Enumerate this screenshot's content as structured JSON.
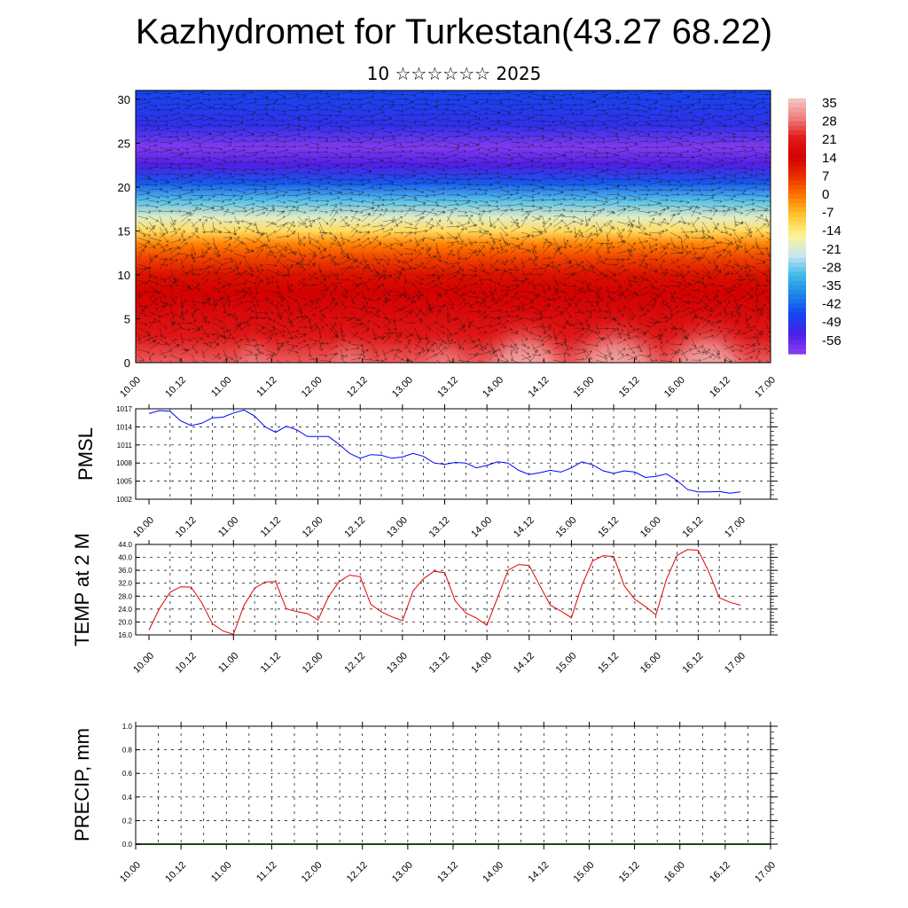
{
  "title": "Kazhydromet for Turkestan(43.27 68.22)",
  "subtitle": "10 ☆☆☆☆☆☆ 2025",
  "colorbar": {
    "labels": [
      "35",
      "28",
      "21",
      "14",
      "7",
      "0",
      "-7",
      "-14",
      "-21",
      "-28",
      "-35",
      "-42",
      "-49",
      "-56"
    ],
    "colors": [
      "#f7c6c6",
      "#ee8080",
      "#e21a1a",
      "#d40000",
      "#e83000",
      "#ff7a00",
      "#ffc830",
      "#fff39a",
      "#c8e6f0",
      "#3fb8ea",
      "#1a86e8",
      "#1545f0",
      "#4a1ee6",
      "#8a3ef0"
    ]
  },
  "chart_data": [
    {
      "type": "heatmap",
      "name_note": "",
      "title": "",
      "x_ticks": [
        "10.00",
        "10.12",
        "11.00",
        "11.12",
        "12.00",
        "12.12",
        "13.00",
        "13.12",
        "14.00",
        "14.12",
        "15.00",
        "15.12",
        "16.00",
        "16.12",
        "17.00"
      ],
      "y_ticks": [
        "0",
        "5",
        "10",
        "15",
        "20",
        "25",
        "30"
      ],
      "ylim": [
        0,
        31
      ],
      "value_range": [
        -59,
        38
      ],
      "profile_by_height": [
        {
          "h": 0,
          "v": 28
        },
        {
          "h": 3,
          "v": 22
        },
        {
          "h": 6,
          "v": 18
        },
        {
          "h": 8,
          "v": 16
        },
        {
          "h": 10,
          "v": 13
        },
        {
          "h": 12,
          "v": 6
        },
        {
          "h": 13.5,
          "v": 0
        },
        {
          "h": 15,
          "v": -10
        },
        {
          "h": 16.5,
          "v": -18
        },
        {
          "h": 18.5,
          "v": -28
        },
        {
          "h": 20.5,
          "v": -42
        },
        {
          "h": 22.5,
          "v": -52
        },
        {
          "h": 24.5,
          "v": -58
        },
        {
          "h": 27,
          "v": -48
        },
        {
          "h": 31,
          "v": -44
        }
      ],
      "warm_cores_x": [
        "14.00-14.12",
        "15.00-15.12",
        "16.00-16.12"
      ]
    },
    {
      "type": "line",
      "ylabel": "PMSL",
      "ylim": [
        1002,
        1017
      ],
      "y_ticks": [
        "1002",
        "1005",
        "1008",
        "1011",
        "1014",
        "1017"
      ],
      "x_ticks": [
        "10.00",
        "10.12",
        "11.00",
        "11.12",
        "12.00",
        "12.12",
        "13.00",
        "13.12",
        "14.00",
        "14.12",
        "15.00",
        "15.12",
        "16.00",
        "16.12",
        "17.00"
      ],
      "series": [
        {
          "color": "#0000ff",
          "step_hours": 3,
          "values": [
            1016.2,
            1016.7,
            1016.6,
            1015.0,
            1014.2,
            1014.6,
            1015.5,
            1015.6,
            1016.3,
            1016.8,
            1015.8,
            1014.0,
            1013.1,
            1014.1,
            1013.5,
            1012.4,
            1012.4,
            1012.4,
            1011.1,
            1009.6,
            1008.8,
            1009.4,
            1009.3,
            1008.8,
            1009.0,
            1009.6,
            1009.1,
            1008.0,
            1007.8,
            1008.1,
            1008.0,
            1007.2,
            1007.6,
            1008.2,
            1008.0,
            1006.8,
            1006.1,
            1006.4,
            1006.8,
            1006.5,
            1007.2,
            1008.2,
            1007.7,
            1006.7,
            1006.3,
            1006.7,
            1006.5,
            1005.6,
            1005.8,
            1006.2,
            1005.1,
            1003.6,
            1003.2,
            1003.2,
            1003.3,
            1003.0,
            1003.2
          ]
        }
      ]
    },
    {
      "type": "line",
      "ylabel": "TEMP at 2 M",
      "ylim": [
        16,
        44
      ],
      "y_ticks": [
        "16.0",
        "20.0",
        "24.0",
        "28.0",
        "32.0",
        "36.0",
        "40.0",
        "44.0"
      ],
      "x_ticks": [
        "10.00",
        "10.12",
        "11.00",
        "11.12",
        "12.00",
        "12.12",
        "13.00",
        "13.12",
        "14.00",
        "14.12",
        "15.00",
        "15.12",
        "16.00",
        "16.12",
        "17.00"
      ],
      "series": [
        {
          "color": "#e00000",
          "step_hours": 6,
          "values": [
            17.5,
            24.2,
            29.2,
            30.9,
            30.8,
            25.9,
            19.5,
            17.2,
            16.2,
            25.2,
            30.4,
            32.4,
            32.5,
            24.1,
            23.2,
            22.6,
            20.6,
            27.8,
            32.5,
            34.5,
            34.0,
            25.5,
            23.1,
            21.6,
            20.4,
            29.6,
            33.4,
            35.7,
            35.3,
            26.5,
            22.8,
            21.2,
            19.0,
            27.5,
            36.0,
            37.8,
            37.5,
            31.3,
            25.2,
            23.4,
            21.3,
            31.4,
            38.9,
            40.5,
            40.3,
            31.2,
            27.0,
            24.8,
            22.2,
            33.2,
            40.6,
            42.4,
            42.2,
            35.6,
            27.5,
            26.1,
            25.2
          ]
        }
      ]
    },
    {
      "type": "bar",
      "ylabel": "PRECIP, mm",
      "ylim": [
        0,
        1
      ],
      "y_ticks": [
        "0.0",
        "0.2",
        "0.4",
        "0.6",
        "0.8",
        "1.0"
      ],
      "x_ticks": [
        "10.00",
        "10.12",
        "11.00",
        "11.12",
        "12.00",
        "12.12",
        "13.00",
        "13.12",
        "14.00",
        "14.12",
        "15.00",
        "15.12",
        "16.00",
        "16.12",
        "17.00"
      ],
      "values": [
        0
      ]
    }
  ]
}
